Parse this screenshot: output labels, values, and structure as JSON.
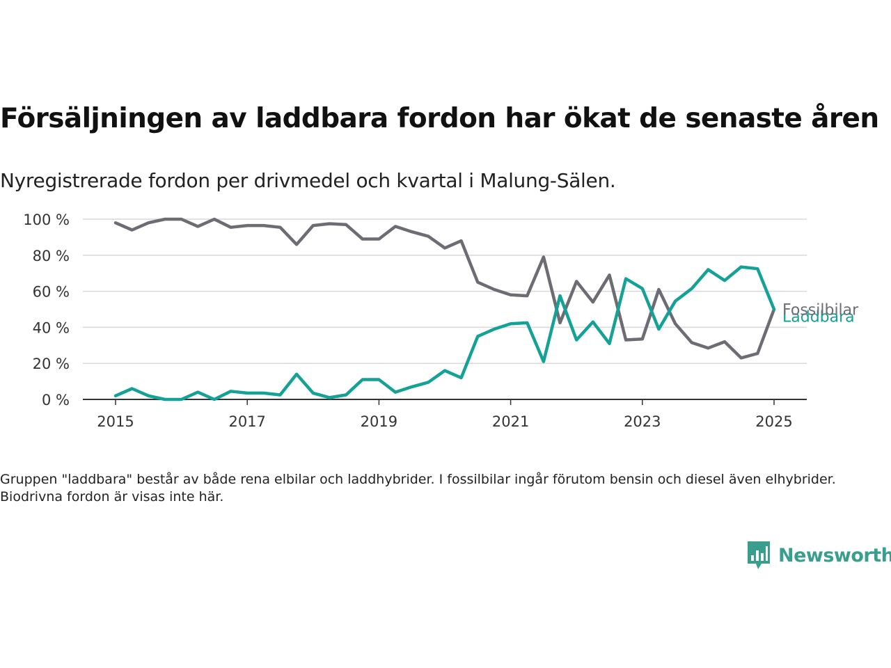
{
  "header": {
    "title": "Försäljningen av laddbara fordon har ökat de senaste åren",
    "subtitle": "Nyregistrerade fordon per drivmedel och kvartal i Malung-Sälen."
  },
  "footer": {
    "note": "Gruppen \"laddbara\" består av både rena elbilar och laddhybrider. I fossilbilar ingår förutom bensin och diesel även elhybrider. Biodrivna fordon är visas inte här.",
    "brand": "Newsworthy"
  },
  "colors": {
    "fossil": "#6d6b73",
    "laddbara": "#14a196",
    "grid": "#d9d9d9",
    "axis": "#333333",
    "brand": "#3a9e8f"
  },
  "chart_data": {
    "type": "line",
    "x_start_year": 2015,
    "x_step_quarter": 0.25,
    "xticks": [
      "2015",
      "2017",
      "2019",
      "2021",
      "2023",
      "2025"
    ],
    "yticks": [
      "0 %",
      "20 %",
      "40 %",
      "60 %",
      "80 %",
      "100 %"
    ],
    "ylim": [
      0,
      100
    ],
    "grid": true,
    "series": [
      {
        "name": "Fossilbilar",
        "color_key": "fossil",
        "values": [
          98,
          94,
          98,
          100,
          100,
          96,
          100,
          95.5,
          96.5,
          96.5,
          95.5,
          86,
          96.5,
          97.5,
          97,
          89,
          89,
          96,
          93,
          90.5,
          84,
          88,
          65,
          61,
          58,
          57.5,
          79,
          42.5,
          65.5,
          54,
          69,
          33,
          33.5,
          61,
          42,
          31.5,
          28.5,
          32,
          23,
          25.5,
          50
        ]
      },
      {
        "name": "Laddbara",
        "color_key": "laddbara",
        "values": [
          2,
          6,
          2,
          0,
          0,
          4,
          0,
          4.5,
          3.5,
          3.5,
          2.5,
          14,
          3.5,
          1,
          2.5,
          11,
          11,
          4,
          7,
          9.5,
          16,
          12,
          35,
          39,
          42,
          42.5,
          21,
          57.5,
          33,
          43,
          31,
          67,
          61.5,
          39,
          54.5,
          61.5,
          72,
          66,
          73.5,
          72.5,
          50
        ]
      }
    ]
  }
}
